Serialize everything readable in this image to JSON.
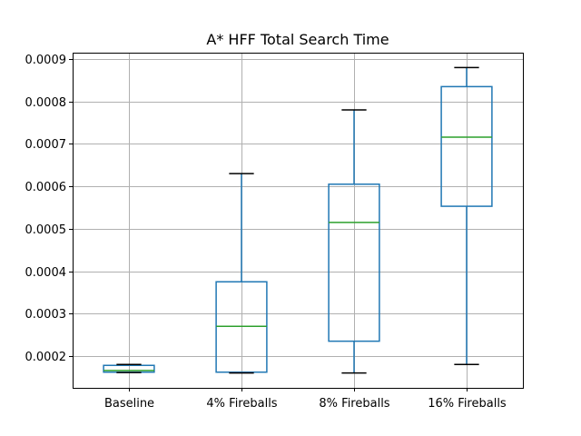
{
  "chart_data": {
    "type": "box",
    "title": "A* HFF Total Search Time",
    "xlabel": "",
    "ylabel": "",
    "categories": [
      "Baseline",
      "4% Fireballs",
      "8% Fireballs",
      "16% Fireballs"
    ],
    "boxes": [
      {
        "name": "Baseline",
        "whisker_low": 0.000161,
        "q1": 0.000162,
        "median": 0.000166,
        "q3": 0.000178,
        "whisker_high": 0.00018
      },
      {
        "name": "4% Fireballs",
        "whisker_low": 0.00016,
        "q1": 0.000162,
        "median": 0.00027,
        "q3": 0.000375,
        "whisker_high": 0.00063
      },
      {
        "name": "8% Fireballs",
        "whisker_low": 0.00016,
        "q1": 0.000235,
        "median": 0.000515,
        "q3": 0.000605,
        "whisker_high": 0.00078
      },
      {
        "name": "16% Fireballs",
        "whisker_low": 0.00018,
        "q1": 0.000553,
        "median": 0.000716,
        "q3": 0.000835,
        "whisker_high": 0.00088
      }
    ],
    "yticks": [
      "0.0002",
      "0.0003",
      "0.0004",
      "0.0005",
      "0.0006",
      "0.0007",
      "0.0008",
      "0.0009"
    ],
    "ytick_values": [
      0.0002,
      0.0003,
      0.0004,
      0.0005,
      0.0006,
      0.0007,
      0.0008,
      0.0009
    ],
    "ylim": [
      0.000125,
      0.000915
    ],
    "grid": true,
    "box_color": "#1f77b4",
    "median_color": "#2ca02c",
    "cap_color": "#000000",
    "grid_color": "#b0b0b0"
  }
}
